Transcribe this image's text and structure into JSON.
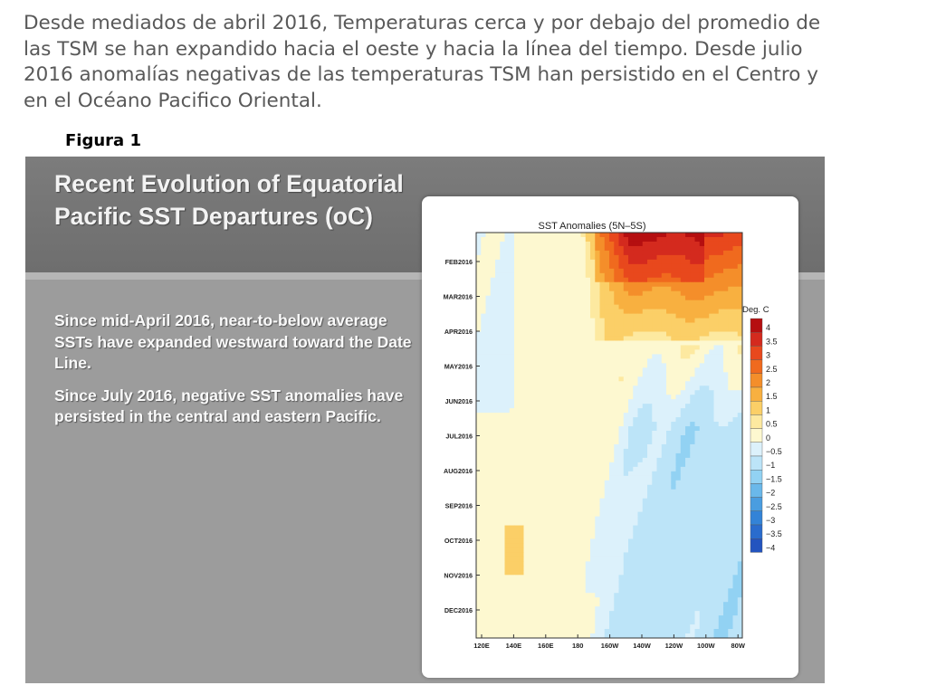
{
  "intro_text": "Desde mediados de abril 2016, Temperaturas cerca y por debajo del promedio de las TSM  se han expandido hacia el oeste y hacia la línea del tiempo.  Desde julio 2016 anomalías negativas de las temperaturas TSM han persistido en el Centro y en el Océano Pacifico Oriental.",
  "figure_label": "Figura 1",
  "slide": {
    "title": "Recent Evolution of Equatorial Pacific SST Departures (oC)",
    "bullets": [
      "Since mid-April 2016, near-to-below average SSTs have expanded westward toward the Date Line.",
      "Since July 2016, negative SST anomalies have persisted in the central and eastern Pacific."
    ]
  },
  "chart_data": {
    "type": "heatmap",
    "title": "SST Anomalies (5N–5S)",
    "months": [
      "FEB2016",
      "MAR2016",
      "APR2016",
      "MAY2016",
      "JUN2016",
      "JUL2016",
      "AUG2016",
      "SEP2016",
      "OCT2016",
      "NOV2016",
      "DEC2016"
    ],
    "longitudes": [
      "120E",
      "140E",
      "160E",
      "180",
      "160W",
      "140W",
      "120W",
      "100W",
      "80W"
    ],
    "legend": {
      "title": "Deg. C",
      "levels": [
        "4",
        "3.5",
        "3",
        "2.5",
        "2",
        "1.5",
        "1",
        "0.5",
        "0",
        "−0.5",
        "−1",
        "−1.5",
        "−2",
        "−2.5",
        "−3",
        "−3.5",
        "−4"
      ],
      "colors": [
        "#b50f10",
        "#d42a1e",
        "#e8481d",
        "#f06a1e",
        "#f48e2a",
        "#f8b040",
        "#fbcf67",
        "#fde9a0",
        "#fdf8d0",
        "#dcf1fb",
        "#bce4f8",
        "#92d2f3",
        "#6ab8ea",
        "#4a9de0",
        "#3383d7",
        "#2a6ccd",
        "#2354bf"
      ]
    }
  }
}
